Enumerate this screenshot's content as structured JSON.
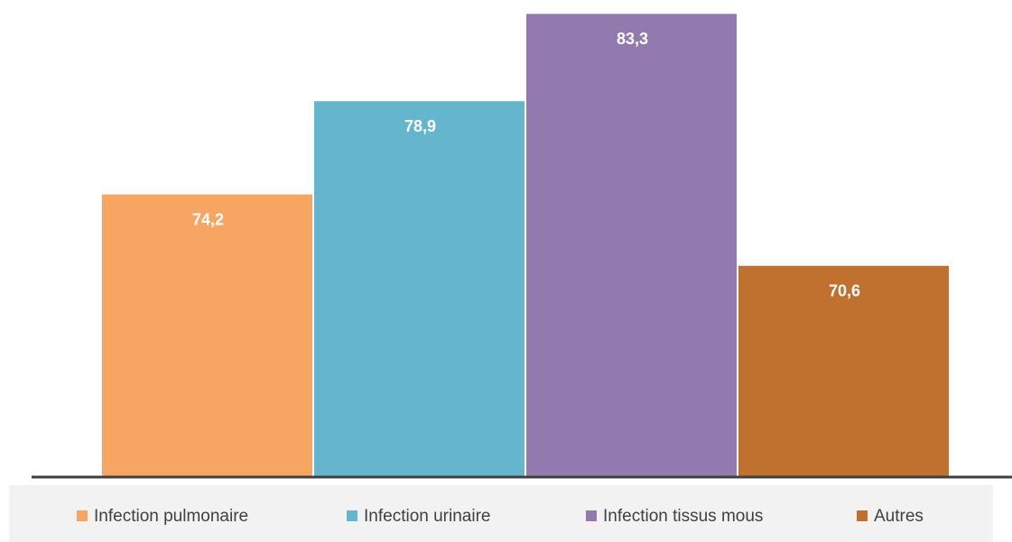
{
  "chart_data": {
    "type": "bar",
    "series": [
      {
        "name": "Infection pulmonaire",
        "color": "#f7a563",
        "values": [
          74.2
        ],
        "value_labels": [
          "74,2"
        ]
      },
      {
        "name": "Infection urinaire",
        "color": "#65b6cd",
        "values": [
          78.9
        ],
        "value_labels": [
          "78,9"
        ]
      },
      {
        "name": "Infection tissus mous",
        "color": "#927aaf",
        "values": [
          83.3
        ],
        "value_labels": [
          "83,3"
        ]
      },
      {
        "name": "Autres",
        "color": "#c0702f",
        "values": [
          70.6
        ],
        "value_labels": [
          "70,6"
        ]
      }
    ],
    "ylim": [
      60,
      84
    ]
  }
}
